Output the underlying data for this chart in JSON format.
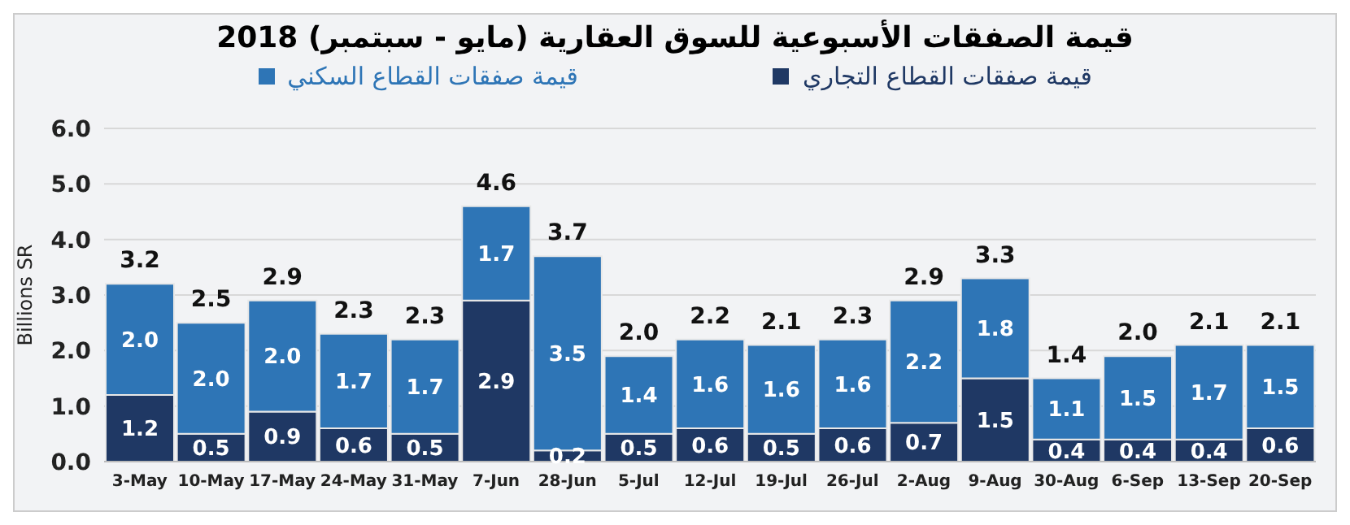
{
  "chart_data": {
    "type": "bar",
    "title": "قيمة الصفقات الأسبوعية للسوق العقارية (مايو - سبتمبر) 2018",
    "ylabel": "Billions SR",
    "categories": [
      "3-May",
      "10-May",
      "17-May",
      "24-May",
      "31-May",
      "7-Jun",
      "28-Jun",
      "5-Jul",
      "12-Jul",
      "19-Jul",
      "26-Jul",
      "2-Aug",
      "9-Aug",
      "30-Aug",
      "6-Sep",
      "13-Sep",
      "20-Sep"
    ],
    "series": [
      {
        "name": "قيمة صفقات القطاع التجاري",
        "color": "#1f3864",
        "values": [
          1.2,
          0.5,
          0.9,
          0.6,
          0.5,
          2.9,
          0.2,
          0.5,
          0.6,
          0.5,
          0.6,
          0.7,
          1.5,
          0.4,
          0.4,
          0.4,
          0.6
        ],
        "value_labels": [
          "1.2",
          "0.5",
          "0.9",
          "0.6",
          "0.5",
          "2.9",
          "0.2",
          "0.5",
          "0.6",
          "0.5",
          "0.6",
          "0.7",
          "1.5",
          "0.4",
          "0.4",
          "0.4",
          "0.6"
        ]
      },
      {
        "name": "قيمة صفقات القطاع السكني",
        "color": "#2e75b6",
        "values": [
          2.0,
          2.0,
          2.0,
          1.7,
          1.7,
          1.7,
          3.5,
          1.4,
          1.6,
          1.6,
          1.6,
          2.2,
          1.8,
          1.1,
          1.5,
          1.7,
          1.5
        ],
        "value_labels": [
          "2.0",
          "2.0",
          "2.0",
          "1.7",
          "1.7",
          "1.7",
          "3.5",
          "1.4",
          "1.6",
          "1.6",
          "1.6",
          "2.2",
          "1.8",
          "1.1",
          "1.5",
          "1.7",
          "1.5"
        ]
      }
    ],
    "stacked": true,
    "totals": [
      "3.2",
      "2.5",
      "2.9",
      "2.3",
      "2.3",
      "4.6",
      "3.7",
      "2.0",
      "2.2",
      "2.1",
      "2.3",
      "2.9",
      "3.3",
      "1.4",
      "2.0",
      "2.1",
      "2.1"
    ],
    "ylim": [
      0,
      6
    ],
    "yticks": [
      {
        "value": 0,
        "label": "0.0"
      },
      {
        "value": 1,
        "label": "1.0"
      },
      {
        "value": 2,
        "label": "2.0"
      },
      {
        "value": 3,
        "label": "3.0"
      },
      {
        "value": 4,
        "label": "4.0"
      },
      {
        "value": 5,
        "label": "5.0"
      },
      {
        "value": 6,
        "label": "6.0"
      }
    ],
    "grid": "y",
    "legend": "top"
  }
}
